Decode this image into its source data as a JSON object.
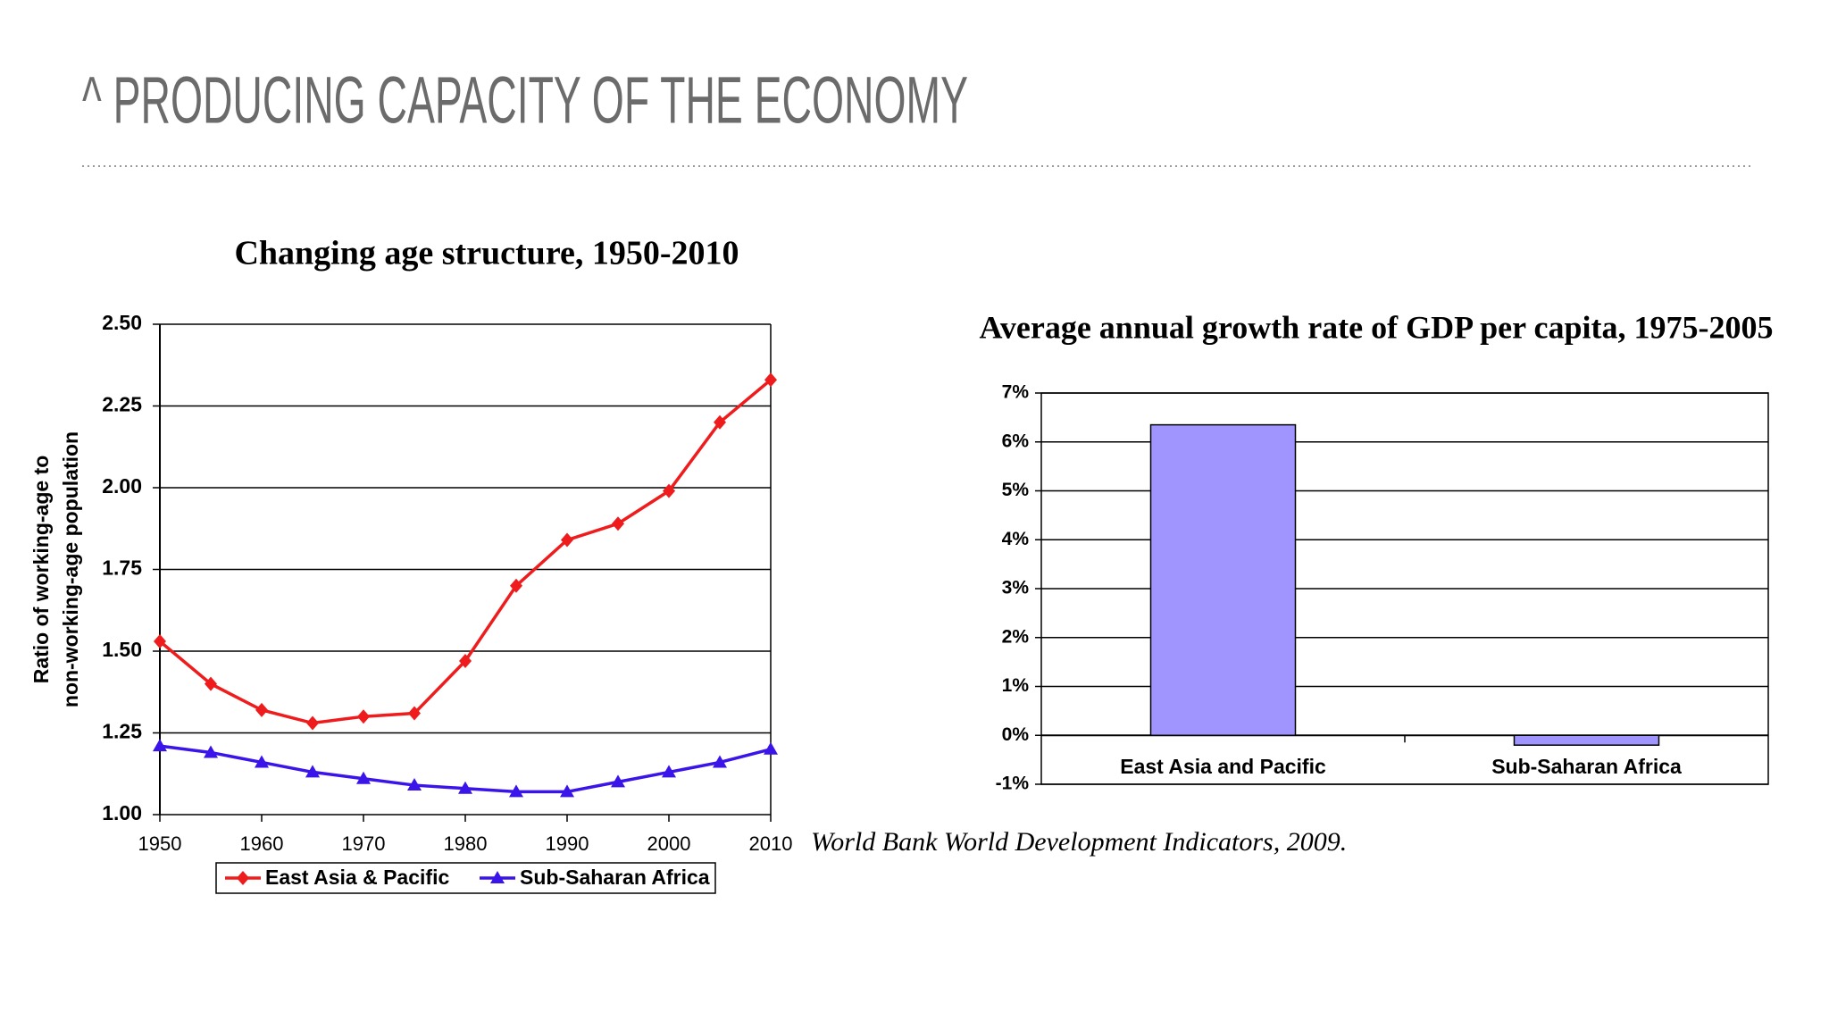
{
  "slide": {
    "title": "^ PRODUCING CAPACITY OF THE ECONOMY",
    "source": "World Bank World Development Indicators, 2009."
  },
  "chart_data": [
    {
      "type": "line",
      "title": "Changing age structure, 1950-2010",
      "y_label": [
        "Ratio of working-age to",
        "non-working-age population"
      ],
      "x": [
        1950,
        1955,
        1960,
        1965,
        1970,
        1975,
        1980,
        1985,
        1990,
        1995,
        2000,
        2005,
        2010
      ],
      "series": [
        {
          "name": "East Asia & Pacific",
          "color": "#ee1c1c",
          "marker": "diamond",
          "values": [
            1.53,
            1.4,
            1.32,
            1.28,
            1.3,
            1.31,
            1.47,
            1.7,
            1.84,
            1.89,
            1.99,
            2.2,
            2.33
          ]
        },
        {
          "name": "Sub-Saharan Africa",
          "color": "#3a14e8",
          "marker": "triangle",
          "values": [
            1.21,
            1.19,
            1.16,
            1.13,
            1.11,
            1.09,
            1.08,
            1.07,
            1.07,
            1.1,
            1.13,
            1.16,
            1.2
          ]
        }
      ],
      "xlim": [
        1950,
        2010
      ],
      "xticks": [
        1950,
        1960,
        1970,
        1980,
        1990,
        2000,
        2010
      ],
      "ylim": [
        1,
        2.5
      ],
      "yticks": [
        {
          "value": 1,
          "label": "1.00"
        },
        1.25,
        {
          "value": 1.5,
          "label": "1.50"
        },
        1.75,
        {
          "value": 2,
          "label": "2.00"
        },
        2.25,
        {
          "value": 2.5,
          "label": "2.50"
        }
      ],
      "grid": true,
      "legend": "bottom"
    },
    {
      "type": "bar",
      "title": "Average annual growth rate of GDP per capita, 1975-2005",
      "categories": [
        "East Asia and Pacific",
        "Sub-Saharan Africa"
      ],
      "values": [
        6.35,
        -0.2
      ],
      "color": "#a095ff",
      "ylim": [
        -1,
        7
      ],
      "yticks": [
        {
          "value": -1,
          "label": "-1%"
        },
        {
          "value": 0,
          "label": "0%"
        },
        {
          "value": 1,
          "label": "1%"
        },
        {
          "value": 2,
          "label": "2%"
        },
        {
          "value": 3,
          "label": "3%"
        },
        {
          "value": 4,
          "label": "4%"
        },
        {
          "value": 5,
          "label": "5%"
        },
        {
          "value": 6,
          "label": "6%"
        },
        {
          "value": 7,
          "label": "7%"
        }
      ],
      "grid": true
    }
  ]
}
